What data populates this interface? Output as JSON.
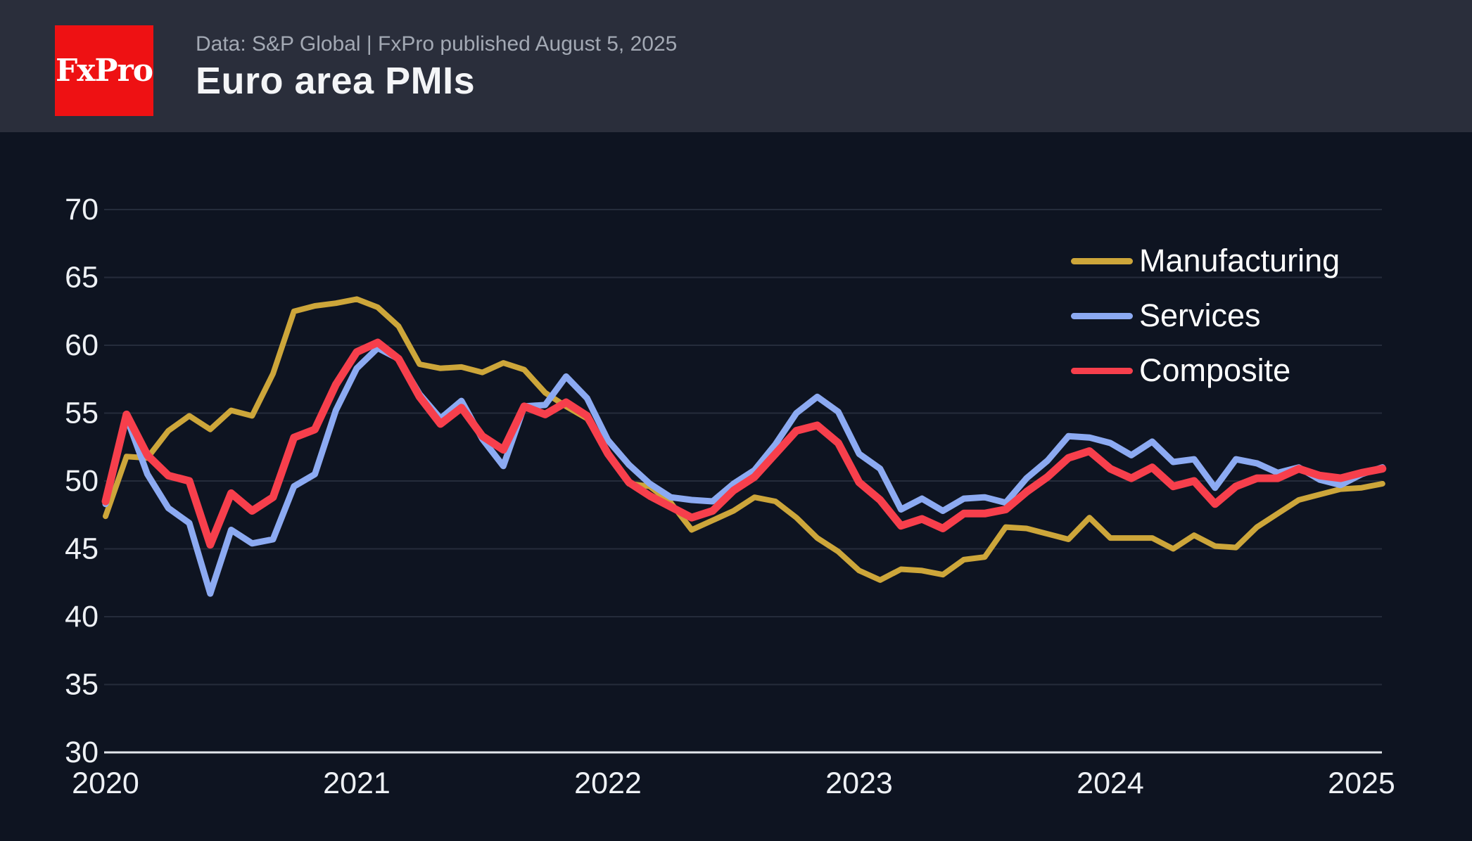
{
  "header": {
    "logo_text": "FxPro",
    "source_line": "Data: S&P Global | FxPro published August 5, 2025",
    "title": "Euro area PMIs"
  },
  "colors": {
    "logo_red": "#ee1113",
    "background": "#0e1421",
    "header_background": "#2a2e3b",
    "gridline": "#252c3b",
    "axis_line": "#e3e6ec",
    "tick_text": "#eef1f5",
    "manufacturing": "#cda63a",
    "services": "#8caaf2",
    "composite": "#f73f4c"
  },
  "chart_data": {
    "type": "line",
    "title": "Euro area PMIs",
    "x_unit": "month",
    "frequency": "monthly",
    "x_start": "2020-06",
    "x_end": "2025-07",
    "ylim": [
      30,
      70
    ],
    "y_ticks": [
      30,
      35,
      40,
      45,
      50,
      55,
      60,
      65,
      70
    ],
    "x_ticks": [
      {
        "label": "2020",
        "month_index": 0
      },
      {
        "label": "2021",
        "month_index": 12
      },
      {
        "label": "2022",
        "month_index": 24
      },
      {
        "label": "2023",
        "month_index": 36
      },
      {
        "label": "2024",
        "month_index": 48
      },
      {
        "label": "2025",
        "month_index": 60
      }
    ],
    "grid": "horizontal",
    "legend_position": "upper-right",
    "series": [
      {
        "name": "Manufacturing",
        "color": "#cda63a",
        "values": [
          47.4,
          51.8,
          51.7,
          53.7,
          54.8,
          53.8,
          55.2,
          54.8,
          57.9,
          62.5,
          62.9,
          63.1,
          63.4,
          62.8,
          61.4,
          58.6,
          58.3,
          58.4,
          58.0,
          58.7,
          58.2,
          56.5,
          55.5,
          54.6,
          52.1,
          49.8,
          49.6,
          48.4,
          46.4,
          47.1,
          47.8,
          48.8,
          48.5,
          47.3,
          45.8,
          44.8,
          43.4,
          42.7,
          43.5,
          43.4,
          43.1,
          44.2,
          44.4,
          46.6,
          46.5,
          46.1,
          45.7,
          47.3,
          45.8,
          45.8,
          45.8,
          45.0,
          46.0,
          45.2,
          45.1,
          46.6,
          47.6,
          48.6,
          49.0,
          49.4,
          49.5,
          49.8
        ]
      },
      {
        "name": "Services",
        "color": "#8caaf2",
        "values": [
          48.3,
          54.7,
          50.5,
          48.0,
          46.9,
          41.7,
          46.4,
          45.4,
          45.7,
          49.6,
          50.5,
          55.2,
          58.3,
          59.8,
          59.0,
          56.4,
          54.6,
          55.9,
          53.1,
          51.1,
          55.5,
          55.6,
          57.7,
          56.1,
          53.0,
          51.2,
          49.8,
          48.8,
          48.6,
          48.5,
          49.8,
          50.8,
          52.7,
          55.0,
          56.2,
          55.1,
          52.0,
          50.9,
          47.9,
          48.7,
          47.8,
          48.7,
          48.8,
          48.4,
          50.2,
          51.5,
          53.3,
          53.2,
          52.8,
          51.9,
          52.9,
          51.4,
          51.6,
          49.5,
          51.6,
          51.3,
          50.6,
          51.0,
          50.1,
          49.7,
          50.5,
          51.0
        ]
      },
      {
        "name": "Composite",
        "color": "#f73f4c",
        "values": [
          48.5,
          54.9,
          51.9,
          50.4,
          50.0,
          45.3,
          49.1,
          47.8,
          48.8,
          53.2,
          53.8,
          57.1,
          59.5,
          60.2,
          59.0,
          56.2,
          54.2,
          55.4,
          53.3,
          52.3,
          55.5,
          54.9,
          55.8,
          54.8,
          52.0,
          49.9,
          48.9,
          48.1,
          47.3,
          47.8,
          49.3,
          50.3,
          52.0,
          53.7,
          54.1,
          52.8,
          49.9,
          48.6,
          46.7,
          47.2,
          46.5,
          47.6,
          47.6,
          47.9,
          49.2,
          50.3,
          51.7,
          52.2,
          50.9,
          50.2,
          51.0,
          49.6,
          50.0,
          48.3,
          49.6,
          50.2,
          50.2,
          50.9,
          50.4,
          50.2,
          50.6,
          50.9
        ]
      }
    ]
  }
}
